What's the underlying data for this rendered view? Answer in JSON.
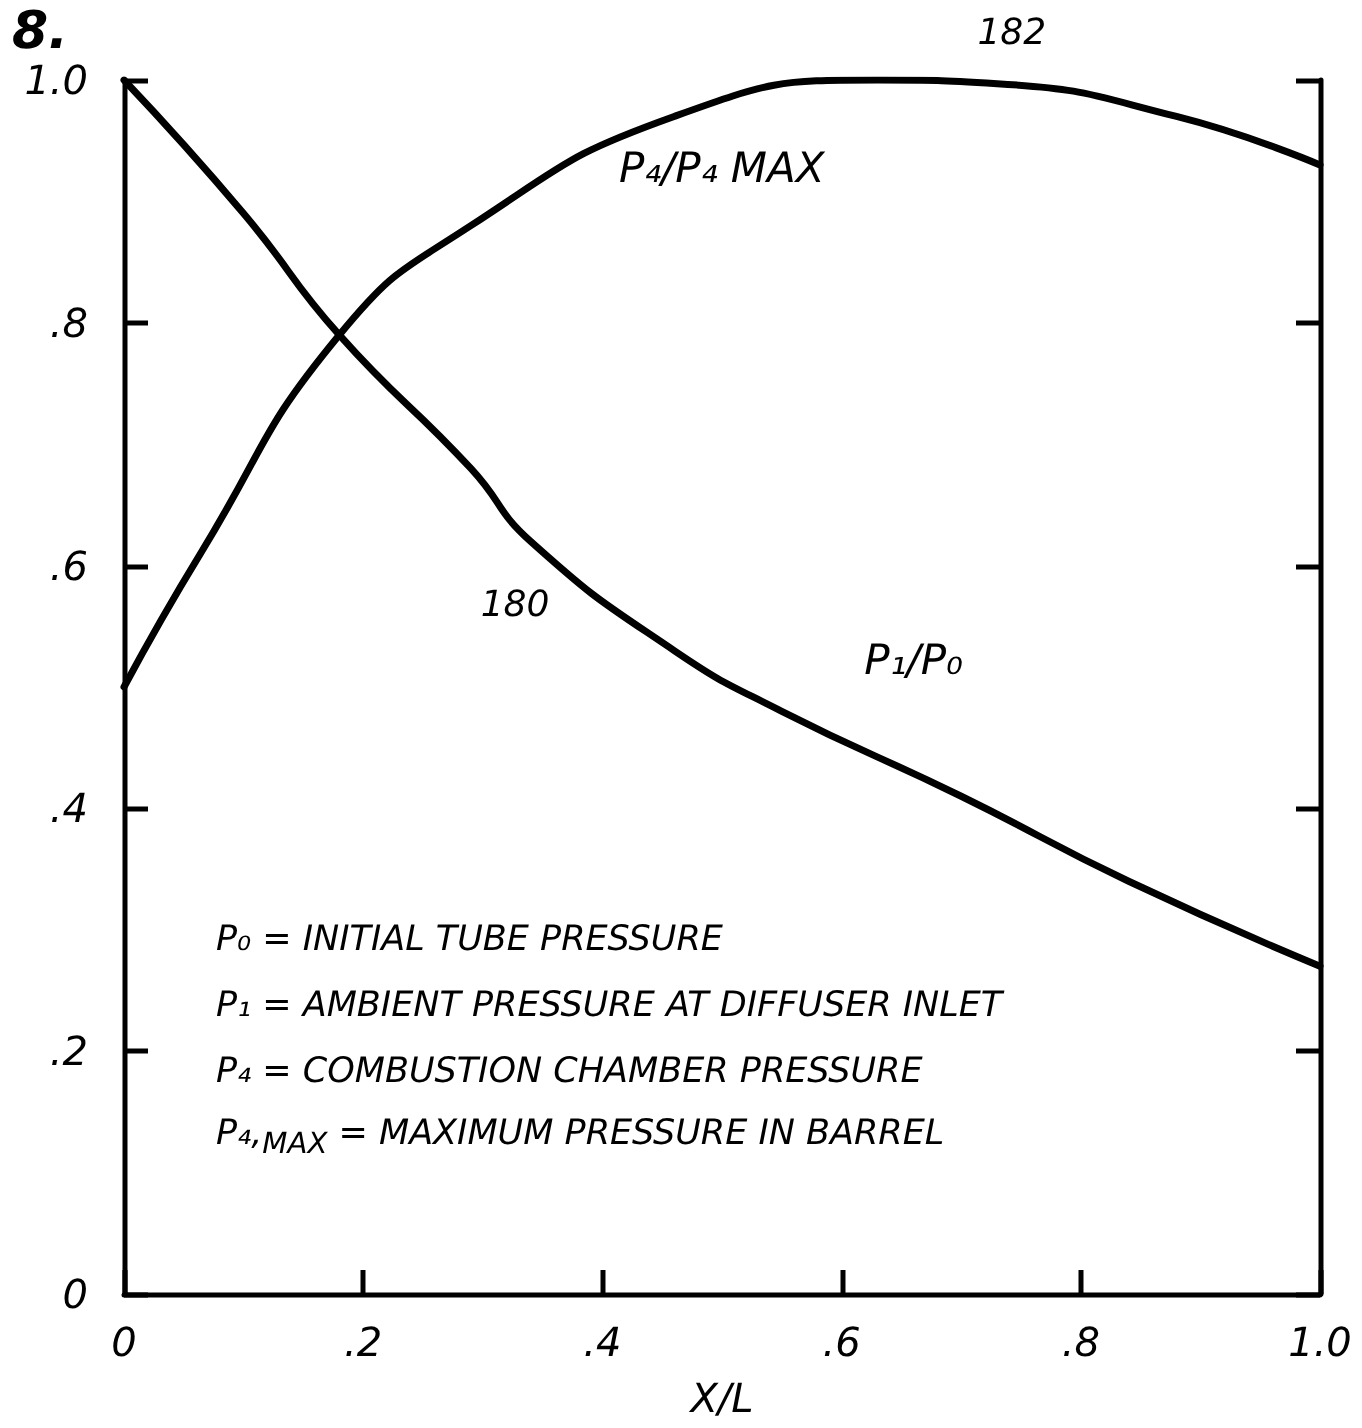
{
  "chart_data": {
    "type": "line",
    "title": "8.",
    "xlabel": "X/L",
    "series": [
      {
        "name": "P₁/P₀",
        "color": "#000000",
        "x": [
          0,
          0.1,
          0.18,
          0.29,
          0.34,
          0.46,
          0.55,
          0.7,
          0.84,
          1.0
        ],
        "values": [
          1.0,
          0.89,
          0.79,
          0.68,
          0.62,
          0.53,
          0.48,
          0.41,
          0.34,
          0.27
        ]
      },
      {
        "name": "P₄/P₄ MAX",
        "color": "#000000",
        "x": [
          0,
          0.064,
          0.18,
          0.29,
          0.46,
          0.63,
          0.73,
          0.88,
          1.0
        ],
        "values": [
          0.5,
          0.61,
          0.79,
          0.88,
          0.97,
          1.0,
          0.997,
          0.97,
          0.93
        ]
      }
    ],
    "xlim": [
      0,
      1
    ],
    "ylim": [
      0,
      1
    ],
    "xticks": [
      0,
      {
        "value": 0.2,
        "label": ".2"
      },
      {
        "value": 0.4,
        "label": ".4"
      },
      {
        "value": 0.6,
        "label": ".6"
      },
      {
        "value": 0.8,
        "label": ".8"
      },
      {
        "value": 1,
        "label": "1.0"
      }
    ],
    "yticks": [
      0,
      {
        "value": 0.2,
        "label": ".2"
      },
      {
        "value": 0.4,
        "label": ".4"
      },
      {
        "value": 0.6,
        "label": ".6"
      },
      {
        "value": 0.8,
        "label": ".8"
      },
      {
        "value": 1,
        "label": "1.0"
      }
    ],
    "annotations": [
      "P₀ = INITIAL TUBE PRESSURE",
      "P₁ = AMBIENT PRESSURE AT DIFFUSER INLET",
      "P₄ = COMBUSTION CHAMBER PRESSURE",
      "P₄,$_{MAX}$ = MAXIMUM PRESSURE IN BARREL",
      {
        "text": "180",
        "x": 0.34,
        "y": 0.62
      },
      {
        "text": "182",
        "x": 0.63,
        "y": 1.0
      }
    ],
    "grid": false,
    "legend": false,
    "marker": "none",
    "line_style": "solid"
  }
}
